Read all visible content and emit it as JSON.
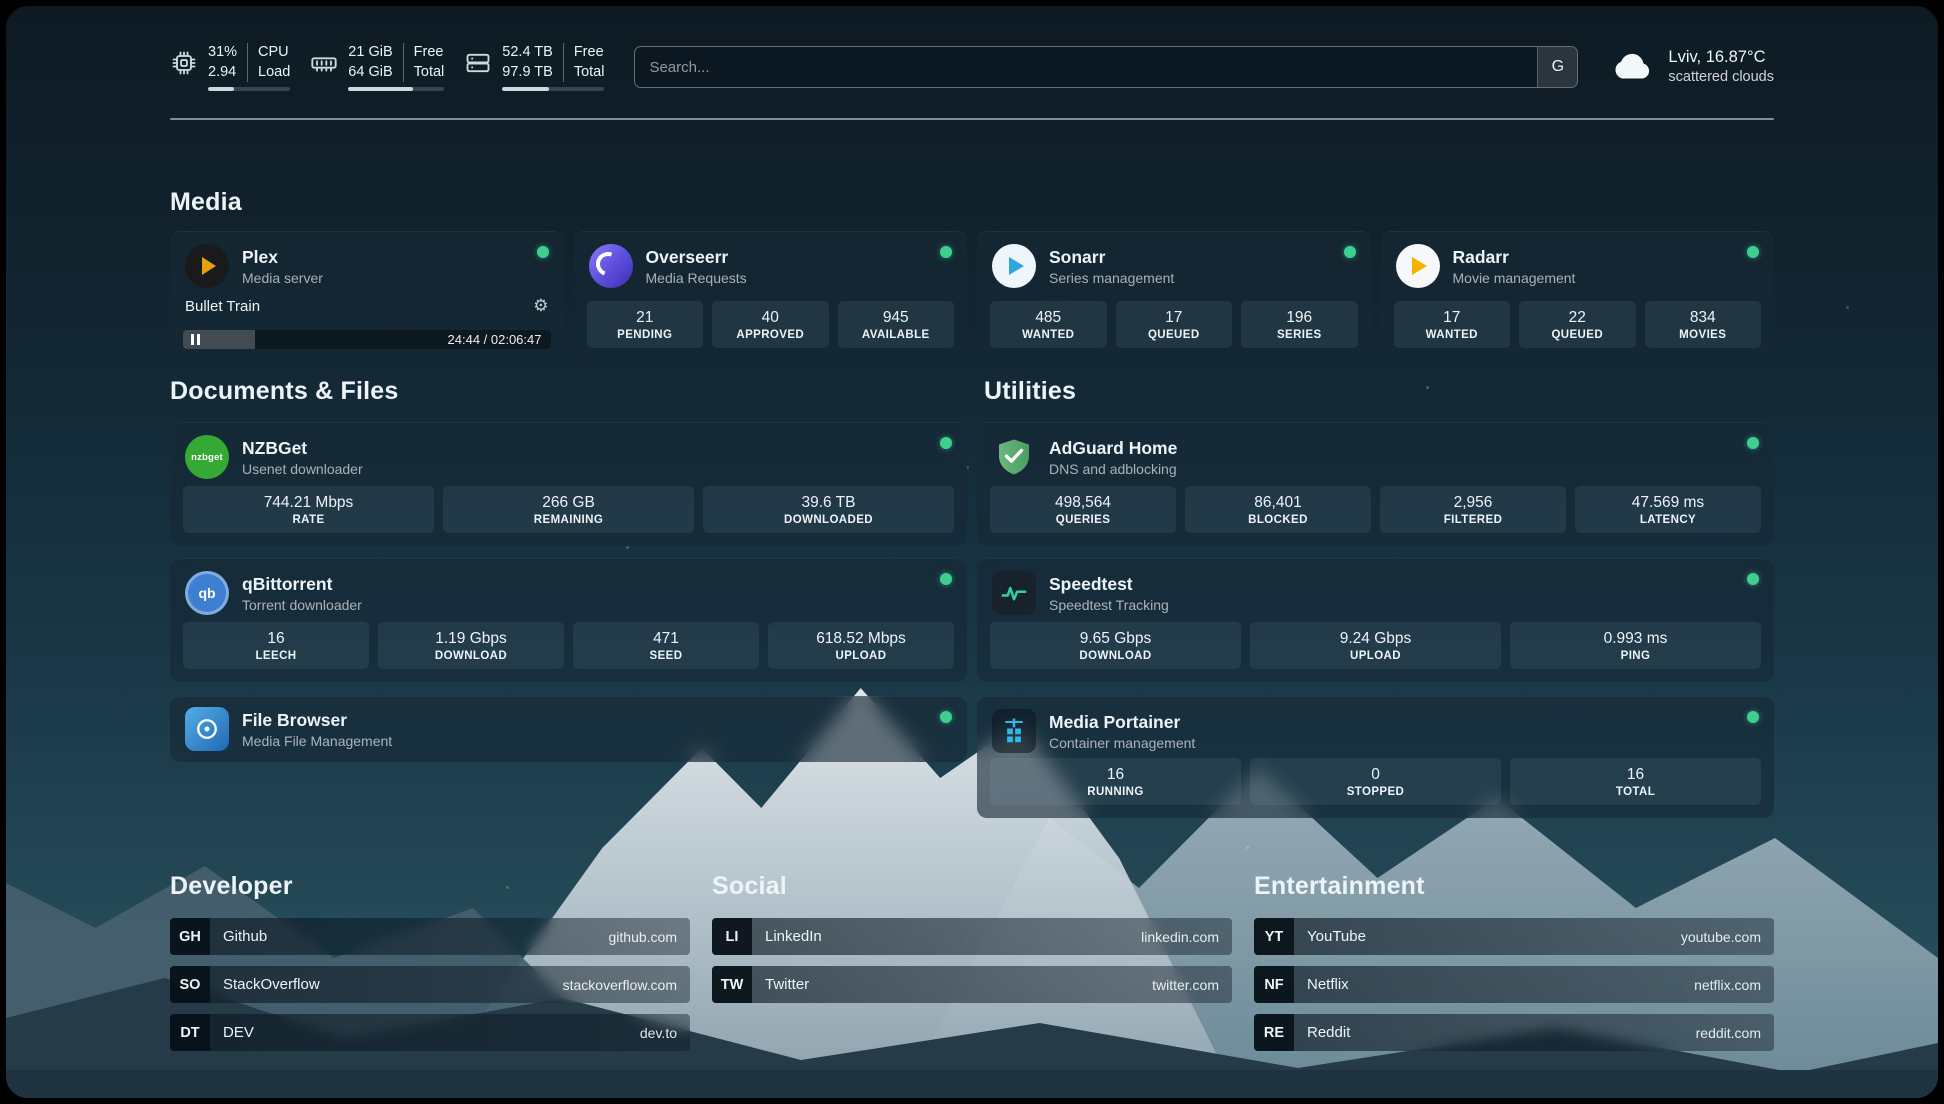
{
  "topbar": {
    "cpu": {
      "percent": "31%",
      "load": "2.94",
      "label_top": "CPU",
      "label_bottom": "Load",
      "bar_percent": 31
    },
    "memory": {
      "free": "21 GiB",
      "total": "64 GiB",
      "label_top": "Free",
      "label_bottom": "Total",
      "bar_percent": 67
    },
    "disk": {
      "free": "52.4 TB",
      "total": "97.9 TB",
      "label_top": "Free",
      "label_bottom": "Total",
      "bar_percent": 46
    },
    "search": {
      "placeholder": "Search...",
      "button_label": "G"
    },
    "weather": {
      "location": "Lviv, 16.87°C",
      "condition": "scattered clouds"
    }
  },
  "section_titles": {
    "media": "Media",
    "documents": "Documents & Files",
    "utilities": "Utilities",
    "developer": "Developer",
    "social": "Social",
    "entertainment": "Entertainment"
  },
  "cards": {
    "plex": {
      "name": "Plex",
      "subtitle": "Media server",
      "now_playing": "Bullet Train",
      "time": "24:44 / 02:06:47",
      "progress_percent": 19.5
    },
    "overseerr": {
      "name": "Overseerr",
      "subtitle": "Media Requests",
      "stats": [
        {
          "value": "21",
          "label": "PENDING"
        },
        {
          "value": "40",
          "label": "APPROVED"
        },
        {
          "value": "945",
          "label": "AVAILABLE"
        }
      ]
    },
    "sonarr": {
      "name": "Sonarr",
      "subtitle": "Series management",
      "stats": [
        {
          "value": "485",
          "label": "WANTED"
        },
        {
          "value": "17",
          "label": "QUEUED"
        },
        {
          "value": "196",
          "label": "SERIES"
        }
      ]
    },
    "radarr": {
      "name": "Radarr",
      "subtitle": "Movie management",
      "stats": [
        {
          "value": "17",
          "label": "WANTED"
        },
        {
          "value": "22",
          "label": "QUEUED"
        },
        {
          "value": "834",
          "label": "MOVIES"
        }
      ]
    },
    "nzbget": {
      "name": "NZBGet",
      "subtitle": "Usenet downloader",
      "icon_text": "nzbget",
      "stats": [
        {
          "value": "744.21 Mbps",
          "label": "RATE"
        },
        {
          "value": "266 GB",
          "label": "REMAINING"
        },
        {
          "value": "39.6 TB",
          "label": "DOWNLOADED"
        }
      ]
    },
    "qbittorrent": {
      "name": "qBittorrent",
      "subtitle": "Torrent downloader",
      "icon_text": "qb",
      "stats": [
        {
          "value": "16",
          "label": "LEECH"
        },
        {
          "value": "1.19 Gbps",
          "label": "DOWNLOAD"
        },
        {
          "value": "471",
          "label": "SEED"
        },
        {
          "value": "618.52 Mbps",
          "label": "UPLOAD"
        }
      ]
    },
    "filebrowser": {
      "name": "File Browser",
      "subtitle": "Media File Management"
    },
    "adguard": {
      "name": "AdGuard Home",
      "subtitle": "DNS and adblocking",
      "stats": [
        {
          "value": "498,564",
          "label": "QUERIES"
        },
        {
          "value": "86,401",
          "label": "BLOCKED"
        },
        {
          "value": "2,956",
          "label": "FILTERED"
        },
        {
          "value": "47.569 ms",
          "label": "LATENCY"
        }
      ]
    },
    "speedtest": {
      "name": "Speedtest",
      "subtitle": "Speedtest Tracking",
      "stats": [
        {
          "value": "9.65 Gbps",
          "label": "DOWNLOAD"
        },
        {
          "value": "9.24 Gbps",
          "label": "UPLOAD"
        },
        {
          "value": "0.993 ms",
          "label": "PING"
        }
      ]
    },
    "portainer": {
      "name": "Media Portainer",
      "subtitle": "Container management",
      "stats": [
        {
          "value": "16",
          "label": "RUNNING"
        },
        {
          "value": "0",
          "label": "STOPPED"
        },
        {
          "value": "16",
          "label": "TOTAL"
        }
      ]
    }
  },
  "links": {
    "developer": [
      {
        "abbr": "GH",
        "name": "Github",
        "url": "github.com"
      },
      {
        "abbr": "SO",
        "name": "StackOverflow",
        "url": "stackoverflow.com"
      },
      {
        "abbr": "DT",
        "name": "DEV",
        "url": "dev.to"
      }
    ],
    "social": [
      {
        "abbr": "LI",
        "name": "LinkedIn",
        "url": "linkedin.com"
      },
      {
        "abbr": "TW",
        "name": "Twitter",
        "url": "twitter.com"
      }
    ],
    "entertainment": [
      {
        "abbr": "YT",
        "name": "YouTube",
        "url": "youtube.com"
      },
      {
        "abbr": "NF",
        "name": "Netflix",
        "url": "netflix.com"
      },
      {
        "abbr": "RE",
        "name": "Reddit",
        "url": "reddit.com"
      }
    ]
  },
  "colors": {
    "status_online": "#3ecf8e",
    "plex_amber": "#e5a00d",
    "adguard_green": "#5aa968"
  }
}
